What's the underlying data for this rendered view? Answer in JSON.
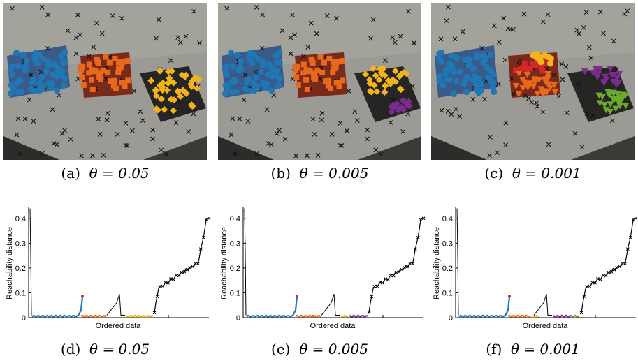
{
  "figure": {
    "panels_top": [
      {
        "letter": "(a)",
        "theta_label": "θ = 0.05"
      },
      {
        "letter": "(b)",
        "theta_label": "θ = 0.005"
      },
      {
        "letter": "(c)",
        "theta_label": "θ = 0.001"
      }
    ],
    "panels_bottom": [
      {
        "letter": "(d)",
        "theta_label": "θ = 0.05"
      },
      {
        "letter": "(e)",
        "theta_label": "θ = 0.005"
      },
      {
        "letter": "(f)",
        "theta_label": "θ = 0.001"
      }
    ]
  },
  "colors": {
    "blue": "#1f77b4",
    "orange": "#e8691a",
    "yellow": "#f2b418",
    "purple": "#7b2d8e",
    "green": "#6bab2c",
    "red": "#d62728",
    "noise": "#000000"
  },
  "chart_data": [
    {
      "type": "line",
      "xlabel": "Ordered data",
      "ylabel": "Reachability distance",
      "ylim": [
        0,
        0.45
      ],
      "yticks": [
        "0",
        "0.1",
        "0.2",
        "0.3",
        "0.4"
      ],
      "clusters": [
        "blue",
        "orange",
        "yellow"
      ]
    },
    {
      "type": "line",
      "xlabel": "Ordered data",
      "ylabel": "Reachability distance",
      "ylim": [
        0,
        0.45
      ],
      "yticks": [
        "0",
        "0.1",
        "0.2",
        "0.3",
        "0.4"
      ],
      "clusters": [
        "blue",
        "orange",
        "yellow",
        "purple"
      ]
    },
    {
      "type": "line",
      "xlabel": "Ordered data",
      "ylabel": "Reachability distance",
      "ylim": [
        0,
        0.45
      ],
      "yticks": [
        "0",
        "0.1",
        "0.2",
        "0.3",
        "0.4"
      ],
      "clusters": [
        "blue",
        "red",
        "orange",
        "yellow",
        "purple",
        "green"
      ]
    }
  ]
}
